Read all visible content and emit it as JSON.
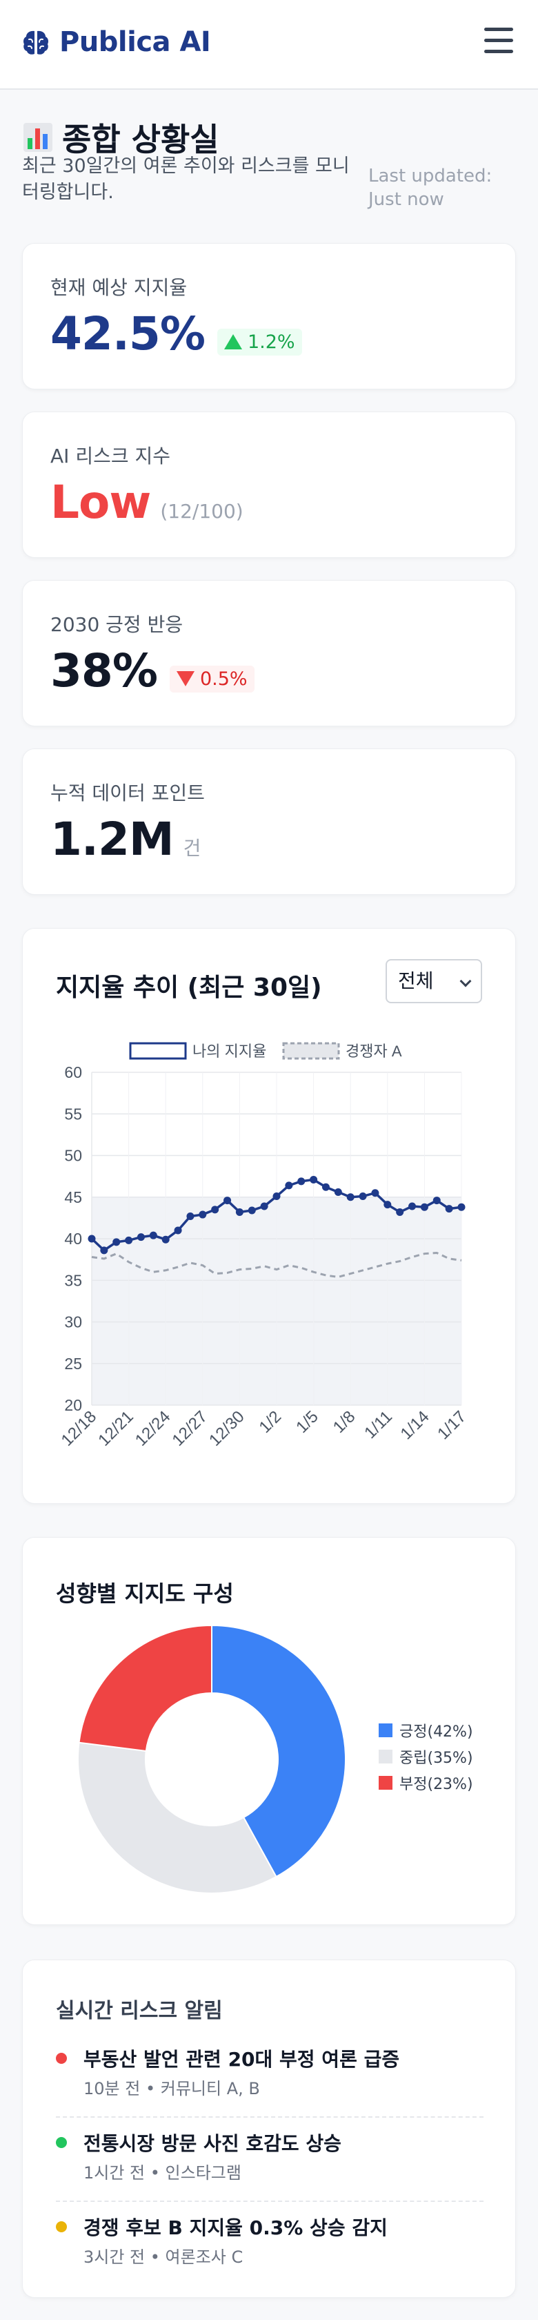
{
  "header": {
    "brand": "Publica AI",
    "brand_icon": "brain-icon",
    "menu_icon": "hamburger-menu-icon"
  },
  "page": {
    "title": "종합 상황실",
    "title_icon": "bar-chart-icon",
    "subtitle": "최근 30일간의 여론 추이와 리스크를 모니터링합니다.",
    "updated": "Last updated: Just now"
  },
  "stats": [
    {
      "label": "현재 예상 지지율",
      "value": "42.5%",
      "change": "1.2%",
      "direction": "up"
    },
    {
      "label": "AI 리스크 지수",
      "value": "Low",
      "note": "(12/100)"
    },
    {
      "label": "2030 긍정 반응",
      "value": "38%",
      "change": "0.5%",
      "direction": "down"
    },
    {
      "label": "누적 데이터 포인트",
      "value": "1.2M",
      "unit": "건"
    }
  ],
  "trend": {
    "title": "지지율 추이 (최근 30일)",
    "filter": {
      "selected": "전체"
    }
  },
  "chart_data": [
    {
      "type": "line",
      "title": "지지율 추이 (최근 30일)",
      "legend_position": "top",
      "grid": true,
      "ylim": [
        20,
        60
      ],
      "yticks": [
        20,
        25,
        30,
        35,
        40,
        45,
        50,
        55,
        60
      ],
      "x_tick_labels": [
        "12/18",
        "12/21",
        "12/24",
        "12/27",
        "12/30",
        "1/2",
        "1/5",
        "1/8",
        "1/11",
        "1/14",
        "1/17"
      ],
      "series": [
        {
          "name": "나의 지지율",
          "color": "#1e3a8a",
          "style": "solid",
          "values": [
            40.0,
            38.6,
            39.6,
            39.8,
            40.2,
            40.4,
            39.9,
            41.0,
            42.7,
            42.9,
            43.5,
            44.6,
            43.2,
            43.4,
            43.9,
            45.1,
            46.4,
            46.9,
            47.1,
            46.2,
            45.6,
            45.0,
            45.1,
            45.5,
            44.1,
            43.2,
            43.9,
            43.8,
            44.6,
            43.6,
            43.8
          ]
        },
        {
          "name": "경쟁자 A",
          "color": "#9ca3af",
          "style": "dashed",
          "values": [
            37.8,
            37.6,
            38.2,
            37.2,
            36.5,
            36.0,
            36.2,
            36.6,
            37.1,
            36.8,
            35.8,
            35.9,
            36.3,
            36.4,
            36.7,
            36.3,
            36.8,
            36.5,
            36.0,
            35.6,
            35.4,
            35.8,
            36.2,
            36.6,
            37.0,
            37.3,
            37.8,
            38.2,
            38.3,
            37.6,
            37.4
          ]
        }
      ]
    },
    {
      "type": "pie",
      "title": "성향별 지지도 구성",
      "donut": true,
      "legend_position": "right",
      "slices": [
        {
          "label": "긍정(42%)",
          "value": 42,
          "color": "#3b82f6"
        },
        {
          "label": "중립(35%)",
          "value": 35,
          "color": "#e5e7eb"
        },
        {
          "label": "부정(23%)",
          "value": 23,
          "color": "#ef4444"
        }
      ]
    }
  ],
  "alerts": {
    "title": "실시간 리스크 알림",
    "items": [
      {
        "title": "부동산 발언 관련 20대 부정 여론 급증",
        "meta": "10분 전 • 커뮤니티 A, B",
        "color": "#ef4444"
      },
      {
        "title": "전통시장 방문 사진 호감도 상승",
        "meta": "1시간 전 • 인스타그램",
        "color": "#22c55e"
      },
      {
        "title": "경쟁 후보 B 지지율 0.3% 상승 감지",
        "meta": "3시간 전 • 여론조사 C",
        "color": "#eab308"
      }
    ]
  }
}
